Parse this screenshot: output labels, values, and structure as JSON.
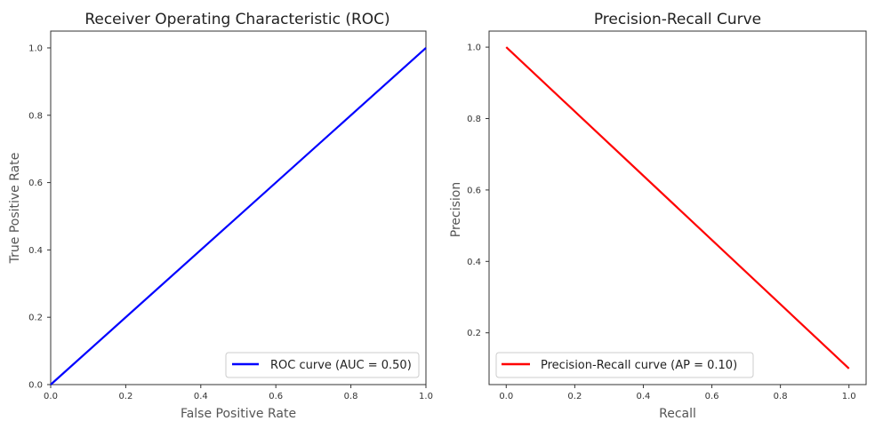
{
  "chart_data": [
    {
      "type": "line",
      "title": "Receiver Operating Characteristic (ROC)",
      "xlabel": "False Positive Rate",
      "ylabel": "True Positive Rate",
      "xlim": [
        0.0,
        1.0
      ],
      "ylim": [
        0.0,
        1.05
      ],
      "xticks": [
        "0.0",
        "0.2",
        "0.4",
        "0.6",
        "0.8",
        "1.0"
      ],
      "yticks": [
        "0.0",
        "0.2",
        "0.4",
        "0.6",
        "0.8",
        "1.0"
      ],
      "grid": false,
      "legend_position": "lower right",
      "series": [
        {
          "name": "ROC curve (AUC = 0.50)",
          "x": [
            0.0,
            1.0
          ],
          "y": [
            0.0,
            1.0
          ],
          "color": "#0000ff",
          "style": "solid"
        },
        {
          "x": [
            0.0,
            1.0
          ],
          "y": [
            0.0,
            1.0
          ],
          "color": "#666666",
          "style": "dashed"
        }
      ]
    },
    {
      "type": "line",
      "title": "Precision-Recall Curve",
      "xlabel": "Recall",
      "ylabel": "Precision",
      "xlim": [
        -0.05,
        1.05
      ],
      "ylim": [
        0.055,
        1.045
      ],
      "xticks": [
        "0.0",
        "0.2",
        "0.4",
        "0.6",
        "0.8",
        "1.0"
      ],
      "yticks": [
        "0.2",
        "0.4",
        "0.6",
        "0.8",
        "1.0"
      ],
      "grid": false,
      "legend_position": "lower left",
      "series": [
        {
          "name": "Precision-Recall curve (AP = 0.10)",
          "x": [
            0.0,
            1.0
          ],
          "y": [
            1.0,
            0.1
          ],
          "color": "#ff0000",
          "style": "solid"
        }
      ]
    }
  ]
}
